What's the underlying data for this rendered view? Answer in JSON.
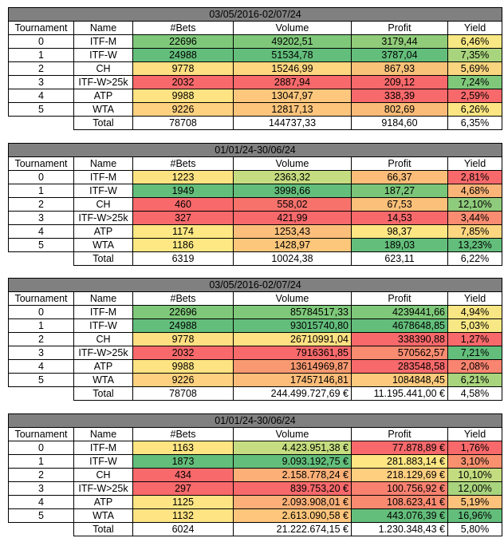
{
  "headers": [
    "Tournament",
    "Name",
    "#Bets",
    "Volume",
    "Profit",
    "Yield"
  ],
  "total_label": "Total",
  "tables": [
    {
      "period": "03/05/2016-02/07/24",
      "rows": [
        {
          "t": "0",
          "name": "ITF-M",
          "bets": "22696",
          "volume": "49202,51",
          "profit": "3179,44",
          "yield": "6,46%",
          "colors": [
            "#7fc87a",
            "#7fc87a",
            "#90cc79",
            "#f7e884"
          ]
        },
        {
          "t": "1",
          "name": "ITF-W",
          "bets": "24988",
          "volume": "51534,78",
          "profit": "3787,04",
          "yield": "7,35%",
          "colors": [
            "#63be7b",
            "#63be7b",
            "#63be7b",
            "#a9d47e"
          ]
        },
        {
          "t": "2",
          "name": "CH",
          "bets": "9778",
          "volume": "15246,99",
          "profit": "867,93",
          "yield": "5,69%",
          "colors": [
            "#fedf81",
            "#fed680",
            "#f9c279",
            "#fad57f"
          ]
        },
        {
          "t": "3",
          "name": "ITF-W>25k",
          "bets": "2032",
          "volume": "2887,94",
          "profit": "209,12",
          "yield": "7,24%",
          "colors": [
            "#f8696b",
            "#f8696b",
            "#f8696b",
            "#7fc87a"
          ]
        },
        {
          "t": "4",
          "name": "ATP",
          "bets": "9988",
          "volume": "13047,97",
          "profit": "338,39",
          "yield": "2,59%",
          "colors": [
            "#fee382",
            "#fdc77d",
            "#f8696b",
            "#f8696b"
          ]
        },
        {
          "t": "5",
          "name": "WTA",
          "bets": "9226",
          "volume": "12817,13",
          "profit": "802,69",
          "yield": "6,26%",
          "colors": [
            "#fdd17f",
            "#fdc47c",
            "#f9bb77",
            "#fbe683"
          ]
        }
      ],
      "total": {
        "bets": "78708",
        "volume": "144737,33",
        "profit": "9184,60",
        "yield": "6,35%"
      },
      "money_right": false
    },
    {
      "period": "01/01/24-30/06/24",
      "rows": [
        {
          "t": "0",
          "name": "ITF-M",
          "bets": "1223",
          "volume": "2363,32",
          "profit": "66,37",
          "yield": "2,81%",
          "colors": [
            "#fde282",
            "#c5dc80",
            "#fbbd78",
            "#f8696b"
          ]
        },
        {
          "t": "1",
          "name": "ITF-W",
          "bets": "1949",
          "volume": "3998,66",
          "profit": "187,27",
          "yield": "4,68%",
          "colors": [
            "#63be7b",
            "#63be7b",
            "#7ac57a",
            "#fbb478"
          ]
        },
        {
          "t": "2",
          "name": "CH",
          "bets": "460",
          "volume": "558,02",
          "profit": "67,53",
          "yield": "12,10%",
          "colors": [
            "#f8696b",
            "#f8726c",
            "#fbc079",
            "#8fcb7c"
          ]
        },
        {
          "t": "3",
          "name": "ITF-W>25k",
          "bets": "327",
          "volume": "421,99",
          "profit": "14,53",
          "yield": "3,44%",
          "colors": [
            "#f8696b",
            "#f8696b",
            "#f8696b",
            "#f98c71"
          ]
        },
        {
          "t": "4",
          "name": "ATP",
          "bets": "1174",
          "volume": "1253,43",
          "profit": "98,37",
          "yield": "7,85%",
          "colors": [
            "#fee883",
            "#fcbf7b",
            "#fee683",
            "#fed680"
          ]
        },
        {
          "t": "5",
          "name": "WTA",
          "bets": "1186",
          "volume": "1428,97",
          "profit": "189,03",
          "yield": "13,23%",
          "colors": [
            "#fee883",
            "#fcc67b",
            "#63be7b",
            "#63be7b"
          ]
        }
      ],
      "total": {
        "bets": "6319",
        "volume": "10024,38",
        "profit": "623,11",
        "yield": "6,22%"
      },
      "money_right": false
    },
    {
      "period": "03/05/2016-02/07/24",
      "rows": [
        {
          "t": "0",
          "name": "ITF-M",
          "bets": "22696",
          "volume": "85784517,33",
          "profit": "4239441,66",
          "yield": "4,94%",
          "colors": [
            "#7fc87a",
            "#7fc87a",
            "#7fc87a",
            "#f8e584"
          ]
        },
        {
          "t": "1",
          "name": "ITF-W",
          "bets": "24988",
          "volume": "93015740,80",
          "profit": "4678648,85",
          "yield": "5,03%",
          "colors": [
            "#63be7b",
            "#63be7b",
            "#63be7b",
            "#f8e885"
          ]
        },
        {
          "t": "2",
          "name": "CH",
          "bets": "9778",
          "volume": "26710991,04",
          "profit": "338390,88",
          "yield": "1,27%",
          "colors": [
            "#fedf81",
            "#fee182",
            "#f8696b",
            "#f8696b"
          ]
        },
        {
          "t": "3",
          "name": "ITF-W>25k",
          "bets": "2032",
          "volume": "7916361,85",
          "profit": "570562,57",
          "yield": "7,21%",
          "colors": [
            "#f8696b",
            "#f8696b",
            "#f98b70",
            "#63be7b"
          ]
        },
        {
          "t": "4",
          "name": "ATP",
          "bets": "9988",
          "volume": "13614969,87",
          "profit": "283548,58",
          "yield": "2,08%",
          "colors": [
            "#fee382",
            "#f99972",
            "#f8696b",
            "#f98470"
          ]
        },
        {
          "t": "5",
          "name": "WTA",
          "bets": "9226",
          "volume": "17457146,81",
          "profit": "1084848,45",
          "yield": "6,21%",
          "colors": [
            "#fdd17f",
            "#fcbd7a",
            "#fdca7d",
            "#a9d47e"
          ]
        }
      ],
      "total": {
        "bets": "78708",
        "volume": "244.499.727,69 €",
        "profit": "11.195.441,00 €",
        "yield": "4,58%"
      },
      "money_right": true
    },
    {
      "period": "01/01/24-30/06/24",
      "rows": [
        {
          "t": "0",
          "name": "ITF-M",
          "bets": "1163",
          "volume": "4.423.951,38 €",
          "profit": "77.878,89 €",
          "yield": "1,76%",
          "colors": [
            "#fee582",
            "#c5dc80",
            "#f8696b",
            "#f8696b"
          ]
        },
        {
          "t": "1",
          "name": "ITF-W",
          "bets": "1873",
          "volume": "9.093.192,75 €",
          "profit": "281.883,14 €",
          "yield": "3,10%",
          "colors": [
            "#63be7b",
            "#63be7b",
            "#fee683",
            "#f9916f"
          ]
        },
        {
          "t": "2",
          "name": "CH",
          "bets": "434",
          "volume": "2.158.778,24 €",
          "profit": "218.129,69 €",
          "yield": "10,10%",
          "colors": [
            "#f8696b",
            "#fcb078",
            "#fecf7f",
            "#c4dc80"
          ]
        },
        {
          "t": "3",
          "name": "ITF-W>25k",
          "bets": "297",
          "volume": "839.753,20 €",
          "profit": "100.756,92 €",
          "yield": "12,00%",
          "colors": [
            "#f8696b",
            "#f8696b",
            "#f98170",
            "#a9d47e"
          ]
        },
        {
          "t": "4",
          "name": "ATP",
          "bets": "1125",
          "volume": "2.093.908,01 €",
          "profit": "108.623,41 €",
          "yield": "5,19%",
          "colors": [
            "#fee483",
            "#fcaf78",
            "#f98a70",
            "#fcc27b"
          ]
        },
        {
          "t": "5",
          "name": "WTA",
          "bets": "1132",
          "volume": "2.613.090,58 €",
          "profit": "443.076,39 €",
          "yield": "16,96%",
          "colors": [
            "#fee483",
            "#fdc67c",
            "#63be7b",
            "#63be7b"
          ]
        }
      ],
      "total": {
        "bets": "6024",
        "volume": "21.222.674,15 €",
        "profit": "1.230.348,43 €",
        "yield": "5,80%"
      },
      "money_right": true
    }
  ]
}
